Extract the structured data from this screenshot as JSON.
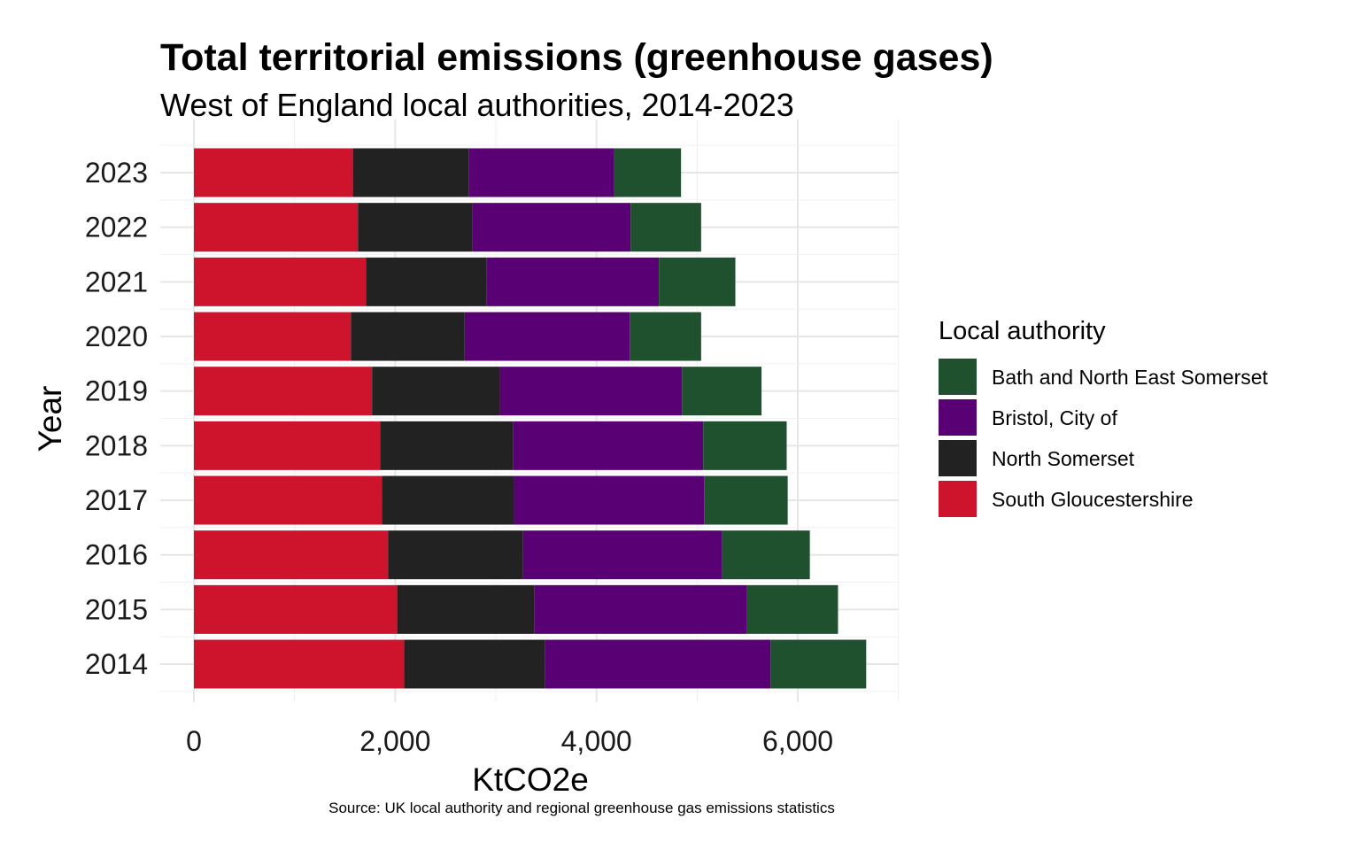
{
  "chart_data": {
    "type": "bar",
    "orientation": "horizontal",
    "stacked": true,
    "title": "Total territorial emissions (greenhouse gases)",
    "subtitle": "West of England local authorities, 2014-2023",
    "xlabel": "KtCO2e",
    "ylabel": "Year",
    "caption": "Source: UK local authority and regional greenhouse gas emissions statistics",
    "xlim": [
      0,
      7000
    ],
    "xticks": [
      0,
      2000,
      4000,
      6000
    ],
    "xtick_labels": [
      "0",
      "2,000",
      "4,000",
      "6,000"
    ],
    "grid": true,
    "legend_position": "right",
    "legend_title": "Local authority",
    "categories": [
      "2023",
      "2022",
      "2021",
      "2020",
      "2019",
      "2018",
      "2017",
      "2016",
      "2015",
      "2014"
    ],
    "series": [
      {
        "name": "South Gloucestershire",
        "color": "#CE132D",
        "values": [
          1580,
          1630,
          1710,
          1560,
          1770,
          1850,
          1870,
          1930,
          2020,
          2090
        ]
      },
      {
        "name": "North Somerset",
        "color": "#222222",
        "values": [
          1150,
          1140,
          1200,
          1130,
          1270,
          1320,
          1310,
          1340,
          1360,
          1400
        ]
      },
      {
        "name": "Bristol, City of",
        "color": "#590075",
        "values": [
          1440,
          1570,
          1710,
          1640,
          1810,
          1890,
          1890,
          1980,
          2110,
          2240
        ]
      },
      {
        "name": "Bath and North East Somerset",
        "color": "#1F512F",
        "values": [
          670,
          700,
          760,
          710,
          790,
          830,
          830,
          870,
          910,
          950
        ]
      }
    ],
    "legend_order": [
      "Bath and North East Somerset",
      "Bristol, City of",
      "North Somerset",
      "South Gloucestershire"
    ]
  }
}
